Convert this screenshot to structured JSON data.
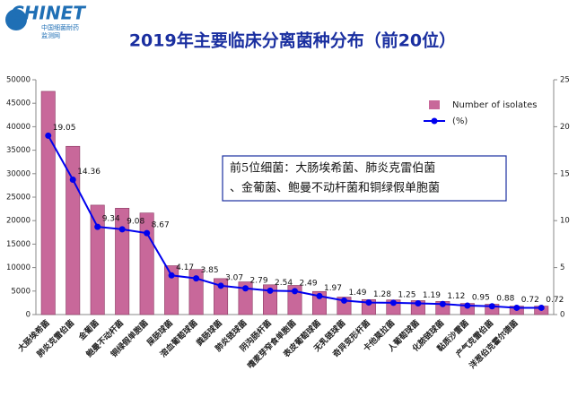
{
  "logo": {
    "name": "CHINET",
    "line1": "中国细菌耐药",
    "line2": "监测网"
  },
  "chart_data": {
    "type": "bar",
    "title": "2019年主要临床分离菌种分布（前20位）",
    "annotation": [
      "前5位细菌：大肠埃希菌、肺炎克雷伯菌",
      "、金葡菌、鲍曼不动杆菌和铜绿假单胞菌"
    ],
    "categories": [
      "大肠埃希菌",
      "肺炎克雷伯菌",
      "金葡菌",
      "鲍曼不动杆菌",
      "铜绿假单胞菌",
      "屎肠球菌",
      "溶血葡萄球菌",
      "粪肠球菌",
      "肺炎链球菌",
      "阴沟肠杆菌",
      "嗜麦芽窄食单胞菌",
      "表皮葡萄球菌",
      "无乳链球菌",
      "奇异变形杆菌",
      "卡他莫拉菌",
      "人葡萄球菌",
      "化脓链球菌",
      "黏质沙雷菌",
      "产气克雷伯菌",
      "洋葱伯克霍尔德菌",
      null
    ],
    "series": [
      {
        "name": "Number of isolates",
        "color": "#c8689a",
        "values": [
          47530,
          35830,
          23300,
          22650,
          21630,
          10400,
          9600,
          7660,
          6960,
          6340,
          6210,
          4920,
          3720,
          3190,
          3120,
          2970,
          2790,
          2370,
          2200,
          1800,
          1800
        ]
      },
      {
        "name": "(%)",
        "color": "#0000ee",
        "axis": "y2",
        "type": "line",
        "values": [
          19.05,
          14.36,
          9.34,
          9.08,
          8.67,
          4.17,
          3.85,
          3.07,
          2.79,
          2.54,
          2.49,
          1.97,
          1.49,
          1.28,
          1.25,
          1.19,
          1.12,
          0.95,
          0.88,
          0.72,
          0.72
        ]
      }
    ],
    "ylim": [
      0,
      50000
    ],
    "yticks": [
      0,
      5000,
      10000,
      15000,
      20000,
      25000,
      30000,
      35000,
      40000,
      45000,
      50000
    ],
    "y2lim": [
      0,
      25
    ],
    "y2ticks": [
      0,
      5,
      10,
      15,
      20,
      25
    ],
    "legend": "upper right"
  }
}
